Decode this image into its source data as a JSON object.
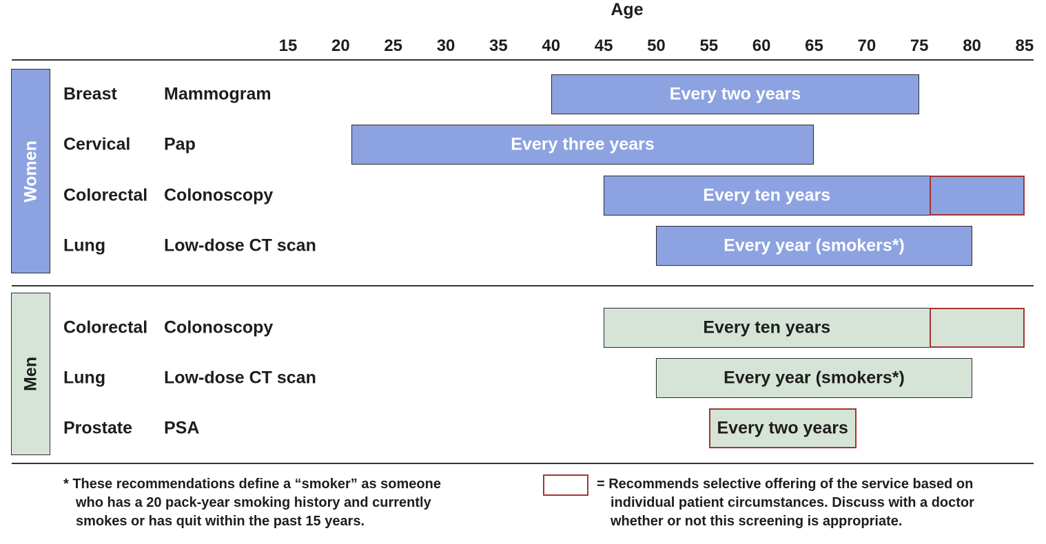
{
  "chart_data": {
    "type": "gantt",
    "xlabel": "Age",
    "ticks": [
      15,
      20,
      25,
      30,
      35,
      40,
      45,
      50,
      55,
      60,
      65,
      70,
      75,
      80,
      85
    ],
    "groups": [
      {
        "name": "Women",
        "rows": [
          {
            "cancer": "Breast",
            "test": "Mammogram",
            "start": 40,
            "end": 75,
            "label": "Every two years",
            "selective_from": null,
            "selective_all": false
          },
          {
            "cancer": "Cervical",
            "test": "Pap",
            "start": 21,
            "end": 65,
            "label": "Every three years",
            "selective_from": null,
            "selective_all": false
          },
          {
            "cancer": "Colorectal",
            "test": "Colonoscopy",
            "start": 45,
            "end": 85,
            "label": "Every ten years",
            "selective_from": 76,
            "selective_all": false
          },
          {
            "cancer": "Lung",
            "test": "Low-dose CT scan",
            "start": 50,
            "end": 80,
            "label": "Every year (smokers*)",
            "selective_from": null,
            "selective_all": false
          }
        ]
      },
      {
        "name": "Men",
        "rows": [
          {
            "cancer": "Colorectal",
            "test": "Colonoscopy",
            "start": 45,
            "end": 85,
            "label": "Every ten years",
            "selective_from": 76,
            "selective_all": false
          },
          {
            "cancer": "Lung",
            "test": "Low-dose CT scan",
            "start": 50,
            "end": 80,
            "label": "Every year (smokers*)",
            "selective_from": null,
            "selective_all": false
          },
          {
            "cancer": "Prostate",
            "test": "PSA",
            "start": 55,
            "end": 69,
            "label": "Every two years",
            "selective_from": null,
            "selective_all": true
          }
        ]
      }
    ]
  },
  "footnote": {
    "line1": "* These recommendations define a “smoker” as someone",
    "line2": "who has a 20 pack-year smoking history and currently",
    "line3": "smokes or has quit within the past 15 years."
  },
  "legend": {
    "line1": "= Recommends selective offering of the service based on",
    "line2": "individual patient circumstances. Discuss with a doctor",
    "line3": "whether or not this screening is appropriate."
  },
  "colors": {
    "women": "#8da2e0",
    "men": "#d6e4d8",
    "selective_border": "#a33333"
  }
}
